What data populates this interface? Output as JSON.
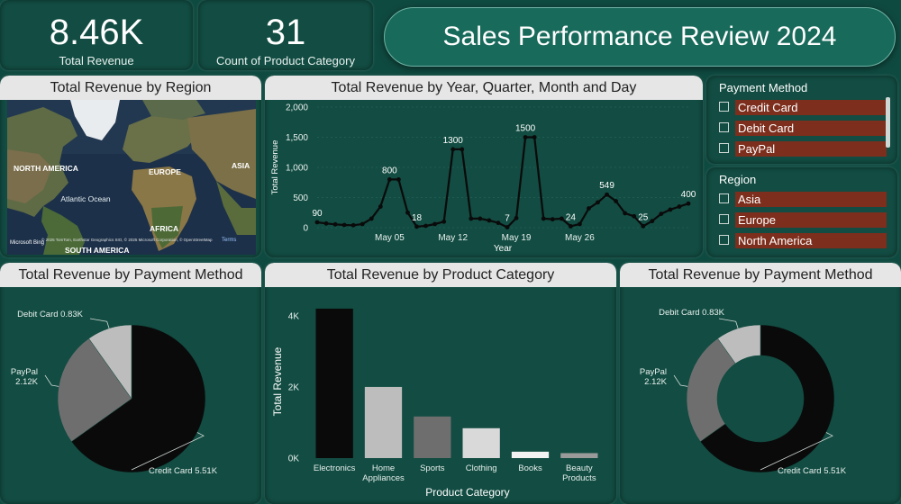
{
  "kpis": [
    {
      "value": "8.46K",
      "label": "Total Revenue"
    },
    {
      "value": "31",
      "label": "Count of Product Category"
    }
  ],
  "page_title": "Sales Performance Review 2024",
  "map_panel": {
    "title": "Total Revenue by Region",
    "labels": {
      "na": "NORTH AMERICA",
      "eu": "EUROPE",
      "asia": "ASIA",
      "ocean": "Atlantic Ocean",
      "africa": "AFRICA",
      "sa": "SOUTH AMERICA"
    },
    "brand": "Microsoft Bing",
    "attribution": "© 2025 TomTom, Earthstar Geographics SIO, © 2025 Microsoft Corporation, © OpenStreetMap",
    "terms": "Terms"
  },
  "line_panel": {
    "title": "Total Revenue by Year, Quarter, Month and Day"
  },
  "slicers": {
    "payment": {
      "header": "Payment Method",
      "options": [
        "Credit Card",
        "Debit Card",
        "PayPal"
      ]
    },
    "region": {
      "header": "Region",
      "options": [
        "Asia",
        "Europe",
        "North America"
      ]
    }
  },
  "pie_panel": {
    "title": "Total Revenue by Payment Method"
  },
  "bar_panel": {
    "title": "Total Revenue by Product Category"
  },
  "donut_panel": {
    "title": "Total Revenue by Payment Method"
  },
  "colors": {
    "black": "#0a0a0a",
    "dark_gray": "#6e6e6e",
    "light_gray": "#bdbdbd",
    "slicer_bar": "#7d2e1c",
    "bg": "#0f4a40"
  },
  "chart_data": [
    {
      "type": "line",
      "title": "Total Revenue by Year, Quarter, Month and Day",
      "xlabel": "Year",
      "ylabel": "Total Revenue",
      "ylim": [
        0,
        2000
      ],
      "yticks": [
        "0",
        "500",
        "1,000",
        "1,500",
        "2,000"
      ],
      "xtick_labels": [
        "May 05",
        "May 12",
        "May 19",
        "May 26"
      ],
      "xtick_index": [
        8,
        15,
        22,
        29
      ],
      "values": [
        90,
        70,
        55,
        45,
        40,
        60,
        150,
        350,
        800,
        800,
        250,
        18,
        30,
        60,
        100,
        1300,
        1300,
        150,
        150,
        120,
        80,
        7,
        160,
        1500,
        1500,
        150,
        140,
        150,
        24,
        60,
        320,
        420,
        549,
        440,
        240,
        190,
        25,
        110,
        230,
        300,
        350,
        400
      ],
      "data_labels": [
        {
          "index": 0,
          "text": "90"
        },
        {
          "index": 8,
          "text": "800"
        },
        {
          "index": 11,
          "text": "18"
        },
        {
          "index": 15,
          "text": "1300"
        },
        {
          "index": 21,
          "text": "7"
        },
        {
          "index": 23,
          "text": "1500"
        },
        {
          "index": 28,
          "text": "24"
        },
        {
          "index": 32,
          "text": "549"
        },
        {
          "index": 36,
          "text": "25"
        },
        {
          "index": 41,
          "text": "400"
        }
      ]
    },
    {
      "type": "pie",
      "title": "Total Revenue by Payment Method",
      "slices": [
        {
          "name": "Credit Card",
          "value": 5.51,
          "label": "Credit Card 5.51K",
          "color": "#0a0a0a"
        },
        {
          "name": "PayPal",
          "value": 2.12,
          "label": "PayPal 2.12K",
          "color": "#6e6e6e"
        },
        {
          "name": "Debit Card",
          "value": 0.83,
          "label": "Debit Card 0.83K",
          "color": "#bdbdbd"
        }
      ]
    },
    {
      "type": "bar",
      "title": "Total Revenue by Product Category",
      "xlabel": "Product Category",
      "ylabel": "Total Revenue",
      "ylim": [
        0,
        4300
      ],
      "yticks": [
        "0K",
        "2K",
        "4K"
      ],
      "categories": [
        "Electronics",
        "Home Appliances",
        "Sports",
        "Clothing",
        "Books",
        "Beauty Products"
      ],
      "values": [
        4200,
        2000,
        1170,
        840,
        180,
        140
      ],
      "colors": [
        "#0a0a0a",
        "#bdbdbd",
        "#6e6e6e",
        "#d9d9d9",
        "#f2f2f2",
        "#9a9a9a"
      ]
    },
    {
      "type": "pie",
      "variant": "donut",
      "title": "Total Revenue by Payment Method",
      "slices": [
        {
          "name": "Credit Card",
          "value": 5.51,
          "label": "Credit Card 5.51K",
          "color": "#0a0a0a"
        },
        {
          "name": "PayPal",
          "value": 2.12,
          "label": "PayPal 2.12K",
          "color": "#6e6e6e"
        },
        {
          "name": "Debit Card",
          "value": 0.83,
          "label": "Debit Card 0.83K",
          "color": "#bdbdbd"
        }
      ]
    }
  ]
}
